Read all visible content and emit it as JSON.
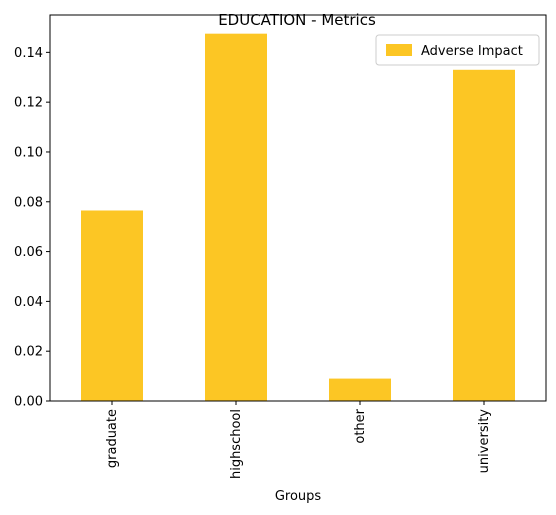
{
  "chart_data": {
    "type": "bar",
    "title": "EDUCATION - Metrics",
    "xlabel": "Groups",
    "ylabel": "",
    "categories": [
      "graduate",
      "highschool",
      "other",
      "university"
    ],
    "series": [
      {
        "name": "Adverse Impact",
        "values": [
          0.0765,
          0.1475,
          0.009,
          0.133
        ],
        "color": "#fcc624"
      }
    ],
    "yticks": [
      0.0,
      0.02,
      0.04,
      0.06,
      0.08,
      0.1,
      0.12,
      0.14
    ],
    "ytick_labels": [
      "0.00",
      "0.02",
      "0.04",
      "0.06",
      "0.08",
      "0.10",
      "0.12",
      "0.14"
    ],
    "ylim": [
      0,
      0.155
    ],
    "grid": false,
    "legend_position": "top-right"
  }
}
